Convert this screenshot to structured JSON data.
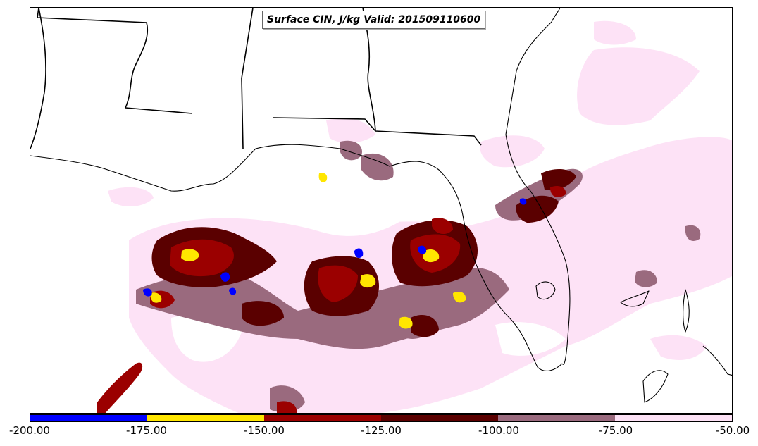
{
  "title": "Surface CIN, J/kg Valid: 201509110600",
  "colorbar": {
    "ticks": [
      "-200.00",
      "-175.00",
      "-150.00",
      "-125.00",
      "-100.00",
      "-75.00",
      "-50.00"
    ],
    "colors": [
      "#0000ff",
      "#ffe600",
      "#9b0000",
      "#5a0000",
      "#9a6a7e",
      "#fde2f6"
    ]
  },
  "palette": {
    "state_lines": "#000000",
    "coastline": "#000000",
    "background": "#ffffff"
  }
}
